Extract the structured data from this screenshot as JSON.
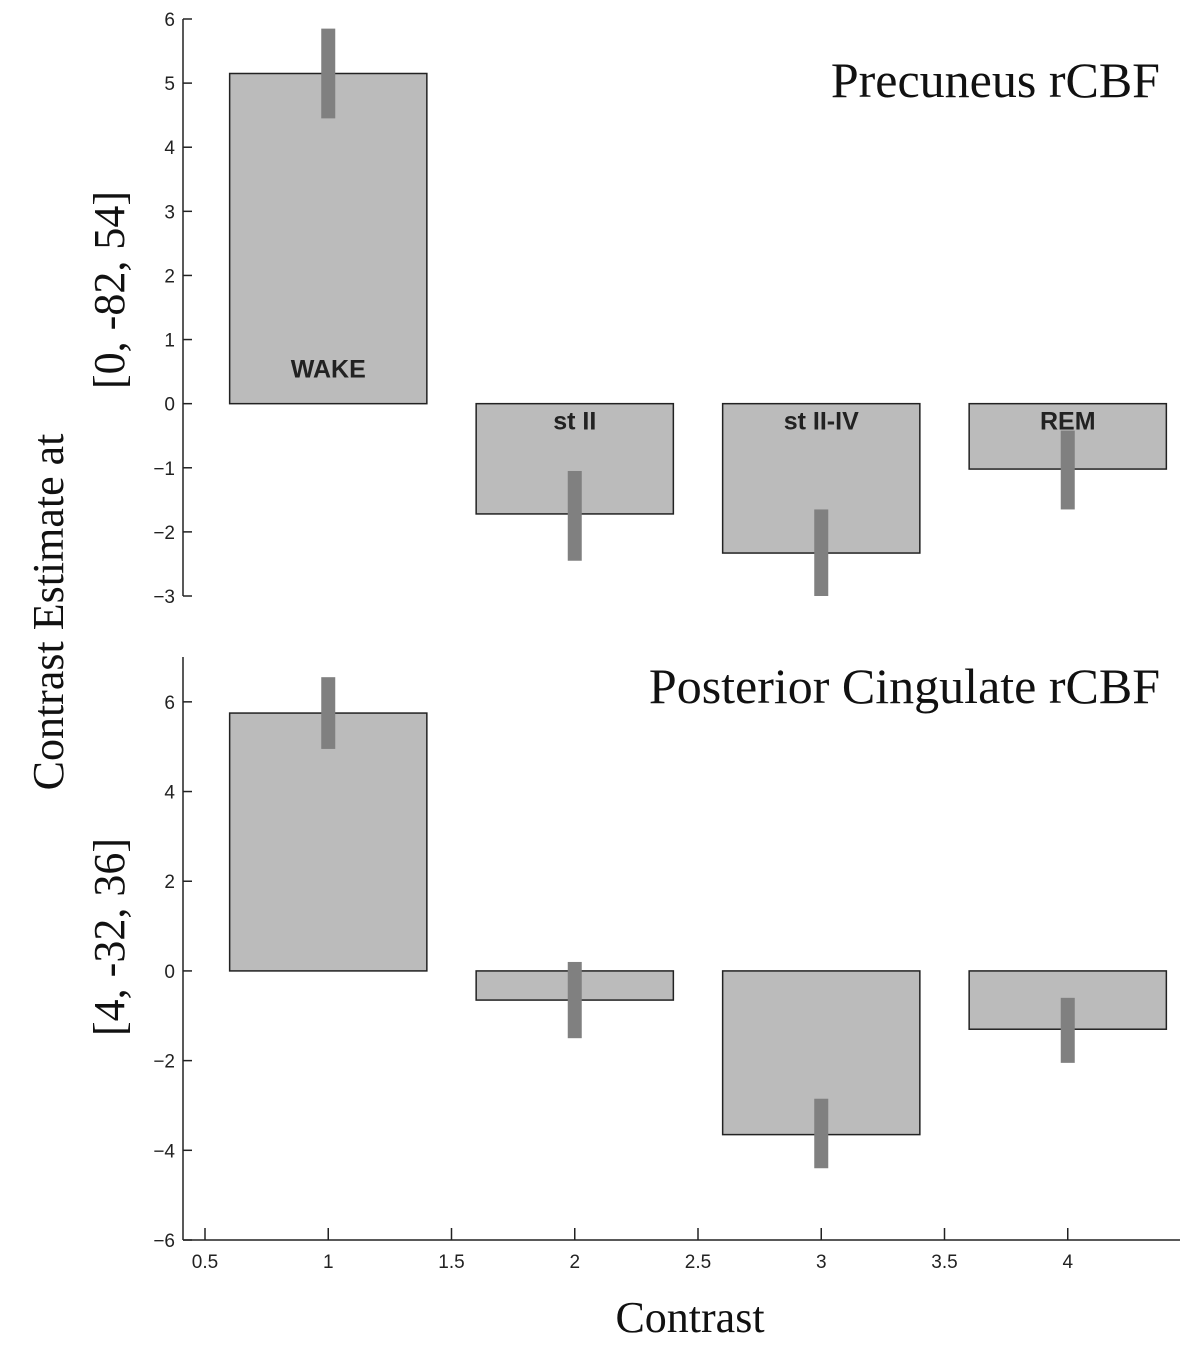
{
  "figure": {
    "ylabel_main": "Contrast Estimate at",
    "xlabel": "Contrast"
  },
  "colors": {
    "bar_fill": "#bbbbbb",
    "bar_stroke": "#222222",
    "error_bar": "#808080",
    "axis": "#222222"
  },
  "chart_data": [
    {
      "type": "bar",
      "title": "Precuneus rCBF",
      "ylabel": "[0, -82, 54]",
      "xlabel": "",
      "x": [
        1,
        2,
        3,
        4
      ],
      "bar_labels": [
        "WAKE",
        "st II",
        "st II-IV",
        "REM"
      ],
      "values": [
        5.15,
        -1.72,
        -2.33,
        -1.02
      ],
      "error_low": [
        4.45,
        -2.45,
        -3.0,
        -1.65
      ],
      "error_high": [
        5.85,
        -1.05,
        -1.65,
        -0.42
      ],
      "ylim": [
        -3,
        6
      ],
      "yticks": [
        -3,
        -2,
        -1,
        0,
        1,
        2,
        3,
        4,
        5,
        6
      ],
      "ytick_labels": [
        "−3",
        "−2",
        "−1",
        "0",
        "1",
        "2",
        "3",
        "4",
        "5",
        "6"
      ]
    },
    {
      "type": "bar",
      "title": "Posterior Cingulate rCBF",
      "ylabel": "[4, -32, 36]",
      "xlabel": "Contrast",
      "x": [
        1,
        2,
        3,
        4
      ],
      "values": [
        5.75,
        -0.65,
        -3.65,
        -1.3
      ],
      "error_low": [
        4.95,
        -1.5,
        -4.4,
        -2.05
      ],
      "error_high": [
        6.55,
        0.2,
        -2.85,
        -0.6
      ],
      "ylim": [
        -6,
        7
      ],
      "yticks": [
        -6,
        -4,
        -2,
        0,
        2,
        4,
        6
      ],
      "ytick_labels": [
        "−6",
        "−4",
        "−2",
        "0",
        "2",
        "4",
        "6"
      ],
      "xlim": [
        0.4,
        4.45
      ],
      "xticks": [
        0.5,
        1,
        1.5,
        2,
        2.5,
        3,
        3.5,
        4
      ],
      "xtick_labels": [
        "0.5",
        "1",
        "1.5",
        "2",
        "2.5",
        "3",
        "3.5",
        "4"
      ]
    }
  ]
}
